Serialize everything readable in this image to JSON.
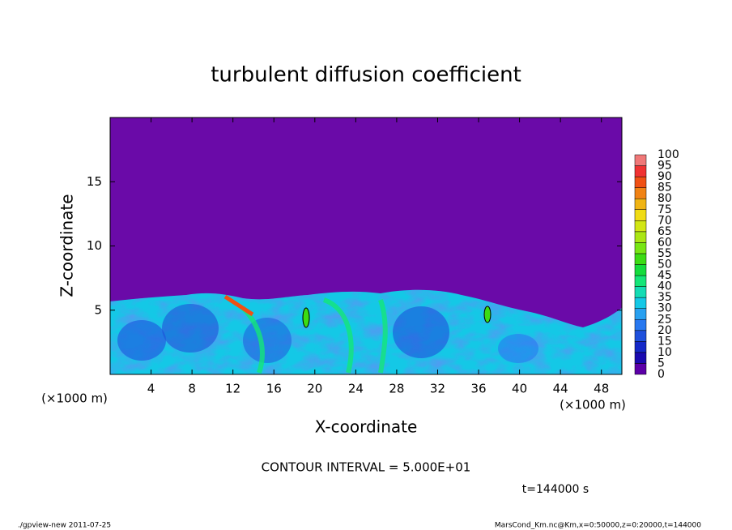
{
  "chart_data": {
    "type": "contour",
    "title": "turbulent diffusion coefficient",
    "xlabel": "X-coordinate",
    "ylabel": "Z-coordinate",
    "x_unit_label": "(×1000 m)",
    "xlim": [
      0,
      50
    ],
    "xticks": [
      4,
      8,
      12,
      16,
      20,
      24,
      28,
      32,
      36,
      40,
      44,
      48
    ],
    "ylim": [
      0,
      20
    ],
    "yticks": [
      5,
      10,
      15
    ],
    "colorbar": {
      "levels": [
        0,
        5,
        10,
        15,
        20,
        25,
        30,
        35,
        40,
        45,
        50,
        55,
        60,
        65,
        70,
        75,
        80,
        85,
        90,
        95,
        100
      ],
      "colors": [
        "#5c00a8",
        "#1a0ab0",
        "#1428c8",
        "#1e50dc",
        "#2878f0",
        "#28a0f0",
        "#14c8e6",
        "#14dcb4",
        "#14e678",
        "#14dc3c",
        "#3cdc14",
        "#78e614",
        "#aae614",
        "#d2e614",
        "#f0dc14",
        "#f0b414",
        "#f08214",
        "#f05014",
        "#f03232",
        "#f07878"
      ]
    },
    "contour_interval": "CONTOUR INTERVAL = 5.000E+01",
    "time_label": "t=144000 s",
    "footer_left": "./gpview-new  2011-07-25",
    "footer_right": "MarsCond_Km.nc@Km,x=0:50000,z=0:20000,t=144000"
  }
}
